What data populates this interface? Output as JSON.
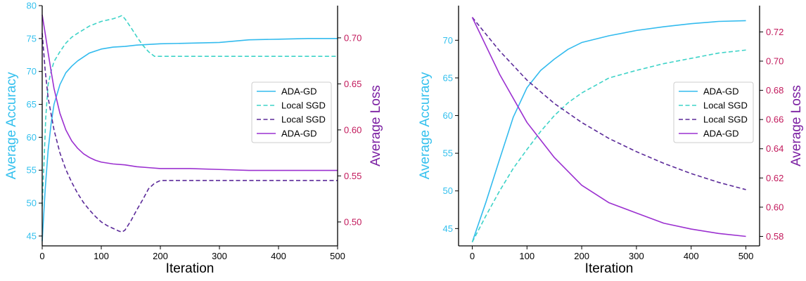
{
  "colors": {
    "accuracy_axis": "#33c0ee",
    "loss_axis": "#c2185b",
    "loss_label": "#7b1fa2",
    "ada_acc": "#33bbee",
    "local_acc": "#3ed3c8",
    "local_loss": "#5b2a99",
    "ada_loss": "#9b30d0"
  },
  "chart_data": [
    {
      "type": "line",
      "xlabel": "Iteration",
      "ylabel_left": "Average Accuracy",
      "ylabel_right": "Average Loss",
      "xlim": [
        0,
        500
      ],
      "ylim_left": [
        43.5,
        80
      ],
      "ylim_right": [
        0.474,
        0.735
      ],
      "xticks": [
        "0",
        "100",
        "200",
        "300",
        "400",
        "500"
      ],
      "yticks_left": [
        "45",
        "50",
        "55",
        "60",
        "65",
        "70",
        "75",
        "80"
      ],
      "yticks_right": [
        "0.50",
        "0.55",
        "0.60",
        "0.65",
        "0.70"
      ],
      "legend_position": "center-right",
      "grid": false,
      "series": [
        {
          "name": "ADA-GD",
          "axis": "left",
          "style": "solid",
          "color_key": "ada_acc",
          "x": [
            0,
            5,
            10,
            15,
            20,
            30,
            40,
            50,
            60,
            80,
            100,
            120,
            140,
            160,
            200,
            250,
            300,
            350,
            400,
            450,
            500
          ],
          "y": [
            44.2,
            52,
            58,
            62,
            65,
            68,
            69.8,
            70.8,
            71.6,
            72.8,
            73.4,
            73.7,
            73.8,
            74.0,
            74.2,
            74.3,
            74.4,
            74.8,
            74.9,
            75.0,
            75.0
          ]
        },
        {
          "name": "Local SGD",
          "axis": "left",
          "style": "dashed",
          "color_key": "local_acc",
          "x": [
            0,
            3,
            6,
            10,
            15,
            20,
            30,
            40,
            50,
            60,
            80,
            100,
            120,
            130,
            135,
            140,
            150,
            160,
            170,
            180,
            190,
            200,
            300,
            400,
            500
          ],
          "y": [
            49.5,
            56,
            63,
            68,
            70,
            71.5,
            73,
            74.3,
            75.2,
            75.8,
            76.9,
            77.6,
            78.0,
            78.3,
            78.5,
            78.0,
            76.7,
            75.3,
            74.0,
            73.0,
            72.3,
            72.3,
            72.3,
            72.3,
            72.3
          ]
        },
        {
          "name": "Local SGD",
          "axis": "right",
          "style": "dashed",
          "color_key": "local_loss",
          "x": [
            0,
            5,
            10,
            20,
            30,
            40,
            50,
            60,
            70,
            80,
            90,
            100,
            110,
            120,
            130,
            135,
            140,
            150,
            160,
            170,
            180,
            190,
            200,
            300,
            400,
            500
          ],
          "y": [
            0.705,
            0.665,
            0.635,
            0.6,
            0.575,
            0.557,
            0.543,
            0.531,
            0.521,
            0.513,
            0.506,
            0.5,
            0.496,
            0.493,
            0.49,
            0.489,
            0.491,
            0.501,
            0.513,
            0.524,
            0.536,
            0.542,
            0.545,
            0.545,
            0.545,
            0.545
          ]
        },
        {
          "name": "ADA-GD",
          "axis": "right",
          "style": "solid",
          "color_key": "ada_loss",
          "x": [
            0,
            5,
            10,
            15,
            20,
            30,
            40,
            50,
            60,
            70,
            80,
            90,
            100,
            120,
            140,
            160,
            180,
            200,
            250,
            300,
            350,
            400,
            450,
            500
          ],
          "y": [
            0.725,
            0.705,
            0.684,
            0.664,
            0.645,
            0.618,
            0.6,
            0.588,
            0.58,
            0.574,
            0.57,
            0.567,
            0.565,
            0.563,
            0.562,
            0.56,
            0.559,
            0.558,
            0.558,
            0.557,
            0.556,
            0.556,
            0.556,
            0.556
          ]
        }
      ]
    },
    {
      "type": "line",
      "xlabel": "Iteration",
      "ylabel_left": "Average Accuracy",
      "ylabel_right": "Average Loss",
      "xlim": [
        -25,
        525
      ],
      "ylim_left": [
        42.7,
        74.6
      ],
      "ylim_right": [
        0.5735,
        0.738
      ],
      "xticks": [
        "0",
        "100",
        "200",
        "300",
        "400",
        "500"
      ],
      "yticks_left": [
        "45",
        "50",
        "55",
        "60",
        "65",
        "70"
      ],
      "yticks_right": [
        "0.58",
        "0.60",
        "0.62",
        "0.64",
        "0.66",
        "0.68",
        "0.70",
        "0.72"
      ],
      "legend_position": "center-right",
      "grid": false,
      "series": [
        {
          "name": "ADA-GD",
          "axis": "left",
          "style": "solid",
          "color_key": "ada_acc",
          "x": [
            0,
            25,
            50,
            75,
            100,
            125,
            150,
            175,
            200,
            250,
            300,
            350,
            400,
            450,
            500
          ],
          "y": [
            43.2,
            48.5,
            54.2,
            59.8,
            63.7,
            66.0,
            67.5,
            68.8,
            69.7,
            70.6,
            71.3,
            71.8,
            72.2,
            72.5,
            72.6
          ]
        },
        {
          "name": "Local SGD",
          "axis": "left",
          "style": "dashed",
          "color_key": "local_acc",
          "x": [
            0,
            25,
            50,
            75,
            100,
            125,
            150,
            175,
            200,
            250,
            300,
            350,
            400,
            450,
            500
          ],
          "y": [
            43.2,
            46.7,
            50.0,
            53.0,
            55.5,
            57.9,
            60.0,
            61.7,
            63.0,
            65.0,
            66.0,
            66.9,
            67.6,
            68.3,
            68.7
          ]
        },
        {
          "name": "Local SGD",
          "axis": "right",
          "style": "dashed",
          "color_key": "local_loss",
          "x": [
            0,
            50,
            100,
            150,
            200,
            250,
            300,
            350,
            400,
            450,
            500
          ],
          "y": [
            0.73,
            0.707,
            0.687,
            0.671,
            0.658,
            0.647,
            0.638,
            0.63,
            0.623,
            0.617,
            0.612
          ]
        },
        {
          "name": "ADA-GD",
          "axis": "right",
          "style": "solid",
          "color_key": "ada_loss",
          "x": [
            0,
            50,
            100,
            150,
            200,
            250,
            300,
            350,
            400,
            450,
            500
          ],
          "y": [
            0.73,
            0.691,
            0.658,
            0.634,
            0.615,
            0.603,
            0.596,
            0.589,
            0.585,
            0.582,
            0.58
          ]
        }
      ]
    }
  ]
}
